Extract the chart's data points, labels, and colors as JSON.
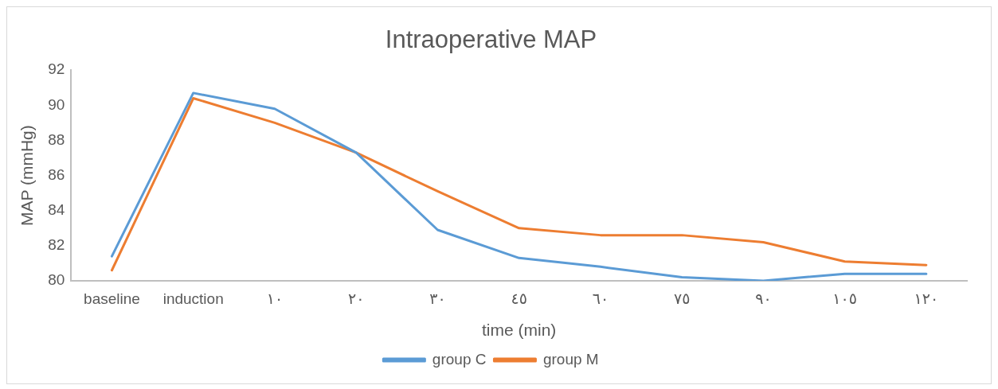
{
  "chart_data": {
    "type": "line",
    "title": "Intraoperative MAP",
    "xlabel": "time (min)",
    "ylabel": "MAP (mmHg)",
    "categories": [
      "baseline",
      "induction",
      "١٠",
      "٢٠",
      "٣٠",
      "٤٥",
      "٦٠",
      "٧٥",
      "٩٠",
      "١٠٥",
      "١٢٠"
    ],
    "series": [
      {
        "name": "group C",
        "color": "#5b9bd5",
        "values": [
          81.4,
          90.7,
          89.8,
          87.3,
          82.9,
          81.3,
          80.8,
          80.2,
          80.0,
          80.4,
          80.4
        ]
      },
      {
        "name": "group M",
        "color": "#ed7d31",
        "values": [
          80.6,
          90.4,
          89.0,
          87.3,
          85.1,
          83.0,
          82.6,
          82.6,
          82.2,
          81.1,
          80.9
        ]
      }
    ],
    "ylim": [
      80,
      92
    ],
    "yticks": [
      80,
      82,
      84,
      86,
      88,
      90,
      92
    ],
    "grid": false,
    "legend": "bottom",
    "marker": "none",
    "line_style": "solid"
  }
}
